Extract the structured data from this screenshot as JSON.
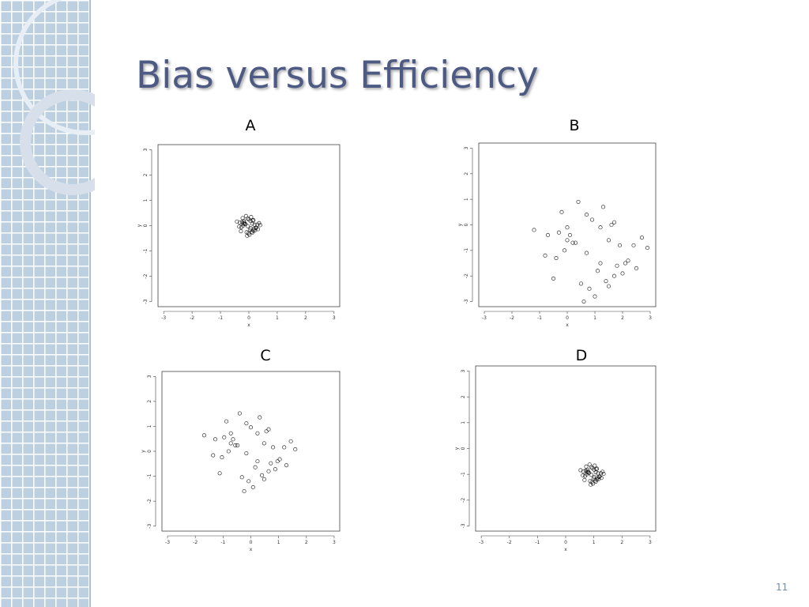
{
  "title": "Bias versus Efficiency",
  "page_number": "11",
  "chart_data": [
    {
      "type": "scatter",
      "title": "A",
      "x_label": "x",
      "y_label": "y",
      "xlim": [
        -3.2,
        3.2
      ],
      "ylim": [
        -3.2,
        3.2
      ],
      "xticks": [
        -3,
        -2,
        -1,
        0,
        1,
        2,
        3
      ],
      "yticks": [
        -3,
        -2,
        -1,
        0,
        1,
        2,
        3
      ],
      "series": [
        {
          "color": "#000000",
          "x": [
            0.06,
            -0.24,
            0.16,
            -0.08,
            0.3,
            -0.18,
            0.02,
            0.12,
            -0.34,
            0.22,
            -0.04,
            0.18,
            -0.12,
            0.4,
            -0.28,
            0.08,
            -0.16,
            0.26,
            -0.02,
            0.14,
            -0.2,
            0.04,
            0.36,
            -0.1,
            -0.26,
            0.1,
            -0.42,
            0.2,
            -0.06,
            0,
            0.32,
            -0.14,
            0.16,
            -0.22,
            0.06,
            -0.04,
            0.24,
            -0.32,
            0.12,
            -0.18
          ],
          "values": [
            -0.1,
            0.14,
            0.22,
            -0.26,
            0.04,
            0.18,
            -0.36,
            0.08,
            -0.04,
            -0.18,
            0.28,
            -0.12,
            0.06,
            0.02,
            -0.22,
            0.34,
            0.12,
            -0.08,
            -0.3,
            0.2,
            0,
            -0.16,
            0.1,
            0.38,
            -0.06,
            -0.24,
            0.16,
            0.04,
            -0.4,
            0.24,
            -0.14,
            0.06,
            -0.2,
            0.3,
            0.18,
            -0.02,
            -0.1,
            0.12,
            -0.28,
            0.08
          ]
        }
      ]
    },
    {
      "type": "scatter",
      "title": "B",
      "x_label": "x",
      "y_label": "y",
      "xlim": [
        -3.2,
        3.2
      ],
      "ylim": [
        -3.2,
        3.2
      ],
      "xticks": [
        -3,
        -2,
        -1,
        0,
        1,
        2,
        3
      ],
      "yticks": [
        -3,
        -2,
        -1,
        0,
        1,
        2,
        3
      ],
      "series": [
        {
          "color": "#000000",
          "x": [
            1.2,
            -0.3,
            1.7,
            0.5,
            2.4,
            0,
            1,
            1.5,
            -0.8,
            2,
            0.7,
            1.8,
            0.3,
            2.9,
            -0.5,
            1.3,
            0.1,
            2.2,
            0.8,
            1.6,
            -0.1,
            1.1,
            2.7,
            0.4,
            -0.4,
            1.4,
            -1.2,
            1.9,
            0.6,
            0.9,
            2.5,
            0.2,
            1.7,
            -0.2,
            1.2,
            0.7,
            2.1,
            -0.7,
            1.5,
            0
          ],
          "values": [
            -1.5,
            -0.3,
            0.1,
            -2.3,
            -0.8,
            -0.1,
            -2.8,
            -0.6,
            -1.2,
            -1.9,
            0.4,
            -1.6,
            -0.7,
            -0.9,
            -2.1,
            0.7,
            -0.4,
            -1.4,
            -2.5,
            0,
            -1,
            -1.8,
            -0.5,
            0.9,
            -1.3,
            -2.2,
            -0.2,
            -0.8,
            -3,
            0.2,
            -1.7,
            -0.7,
            -2,
            0.5,
            -0.1,
            -1.1,
            -1.5,
            -0.4,
            -2.4,
            -0.6
          ]
        }
      ]
    },
    {
      "type": "scatter",
      "title": "C",
      "x_label": "x",
      "y_label": "y",
      "xlim": [
        -3.2,
        3.2
      ],
      "ylim": [
        -3.2,
        3.2
      ],
      "xticks": [
        -3,
        -2,
        -1,
        0,
        1,
        2,
        3
      ],
      "yticks": [
        -3,
        -2,
        -1,
        0,
        1,
        2,
        3
      ],
      "series": [
        {
          "color": "#000000",
          "x": [
            0.24,
            -0.96,
            0.64,
            -0.32,
            1.2,
            -0.72,
            0.08,
            0.48,
            -1.36,
            0.88,
            -0.16,
            0.72,
            -0.48,
            1.6,
            -1.12,
            0.32,
            -0.64,
            1.04,
            -0.08,
            0.56,
            -0.8,
            0.16,
            1.44,
            -0.4,
            -1.04,
            0.4,
            -1.68,
            0.8,
            -0.24,
            0,
            1.28,
            -0.56,
            0.64,
            -0.88,
            0.24,
            -0.16,
            0.96,
            -1.28,
            0.48,
            -0.72
          ],
          "values": [
            -0.4,
            0.56,
            0.88,
            -1.04,
            0.16,
            0.72,
            -1.44,
            0.32,
            -0.16,
            -0.72,
            1.12,
            -0.48,
            0.24,
            0.08,
            -0.88,
            1.36,
            0.48,
            -0.32,
            -1.2,
            0.8,
            0,
            -0.64,
            0.4,
            1.52,
            -0.24,
            -0.96,
            0.64,
            0.16,
            -1.6,
            0.96,
            -0.56,
            0.24,
            -0.8,
            1.2,
            0.72,
            -0.08,
            -0.4,
            0.48,
            -1.12,
            0.32
          ]
        }
      ]
    },
    {
      "type": "scatter",
      "title": "D",
      "x_label": "x",
      "y_label": "y",
      "xlim": [
        -3.2,
        3.2
      ],
      "ylim": [
        -3.2,
        3.2
      ],
      "xticks": [
        -3,
        -2,
        -1,
        0,
        1,
        2,
        3
      ],
      "yticks": [
        -3,
        -2,
        -1,
        0,
        1,
        2,
        3
      ],
      "series": [
        {
          "color": "#000000",
          "x": [
            1.01,
            0.71,
            1.11,
            0.87,
            1.25,
            0.77,
            0.97,
            1.07,
            0.61,
            1.17,
            0.91,
            1.13,
            0.83,
            1.35,
            0.67,
            1.03,
            0.79,
            1.21,
            0.93,
            1.09,
            0.75,
            0.99,
            1.31,
            0.85,
            0.69,
            1.05,
            0.53,
            1.15,
            0.89,
            0.95,
            1.27,
            0.81,
            1.11,
            0.73,
            1.01,
            0.91,
            1.19,
            0.63,
            1.07,
            0.77
          ],
          "values": [
            -1.1,
            -0.86,
            -0.78,
            -1.26,
            -0.96,
            -0.82,
            -1.36,
            -0.92,
            -1.04,
            -1.18,
            -0.72,
            -1.12,
            -0.94,
            -0.98,
            -1.22,
            -0.66,
            -0.88,
            -1.08,
            -1.3,
            -0.8,
            -1,
            -1.16,
            -0.9,
            -0.62,
            -1.06,
            -1.24,
            -0.84,
            -0.96,
            -1.4,
            -0.76,
            -1.14,
            -0.94,
            -1.2,
            -0.7,
            -0.82,
            -1.02,
            -1.1,
            -0.88,
            -1.28,
            -0.92
          ]
        }
      ]
    }
  ]
}
